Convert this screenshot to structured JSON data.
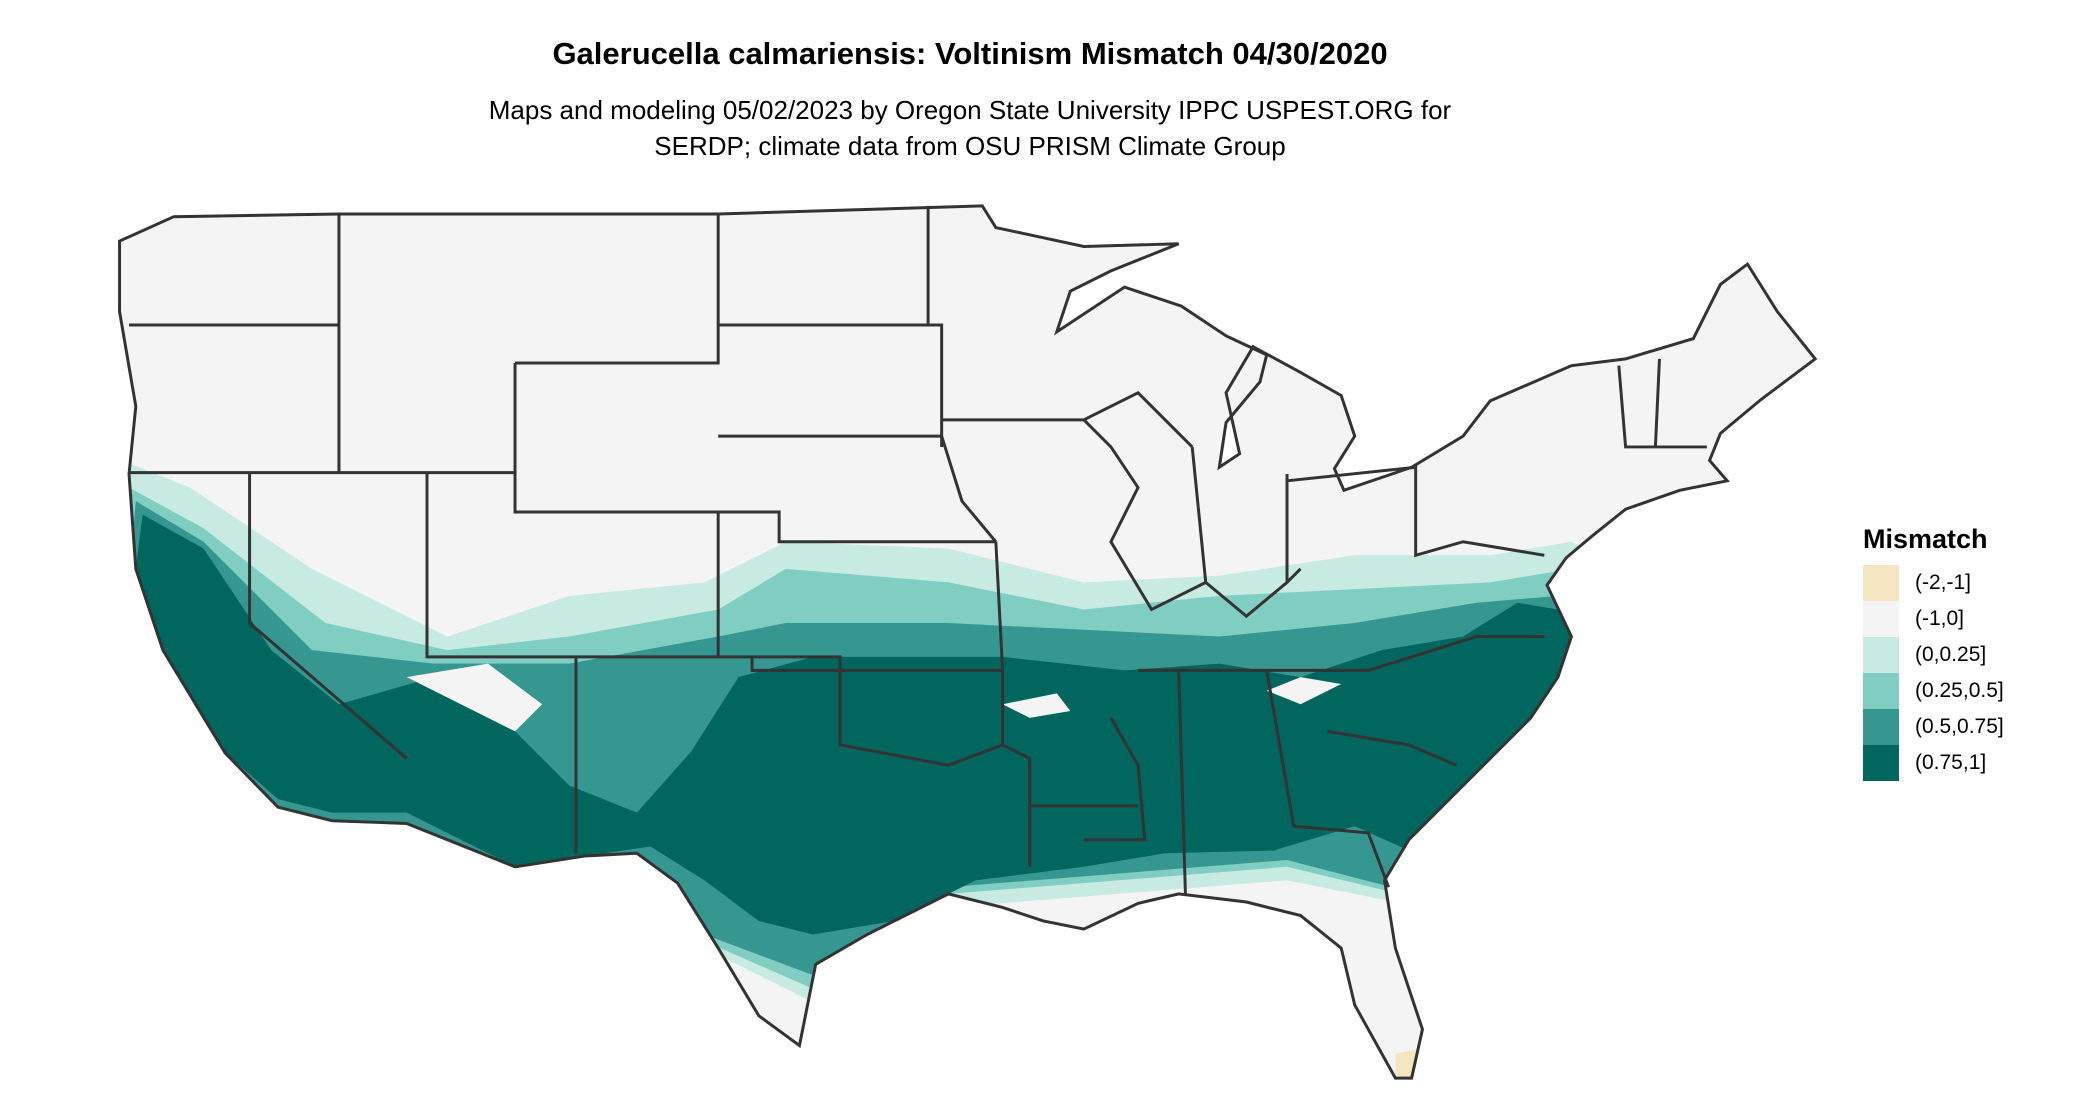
{
  "title": "Galerucella calmariensis: Voltinism Mismatch 04/30/2020",
  "subtitle_line1": "Maps and modeling 05/02/2023 by Oregon State University IPPC USPEST.ORG for",
  "subtitle_line2": "SERDP; climate data from OSU PRISM Climate Group",
  "legend": {
    "title": "Mismatch",
    "items": [
      {
        "label": "(-2,-1]",
        "color": "#f5e6c2"
      },
      {
        "label": "(-1,0]",
        "color": "#f4f4f4"
      },
      {
        "label": "(0,0.25]",
        "color": "#c7eae3"
      },
      {
        "label": "(0.25,0.5]",
        "color": "#80cdc1"
      },
      {
        "label": "(0.5,0.75]",
        "color": "#35978f"
      },
      {
        "label": "(0.75,1]",
        "color": "#01665e"
      }
    ]
  },
  "colors": {
    "state_border": "#333333",
    "background": "#ffffff"
  }
}
